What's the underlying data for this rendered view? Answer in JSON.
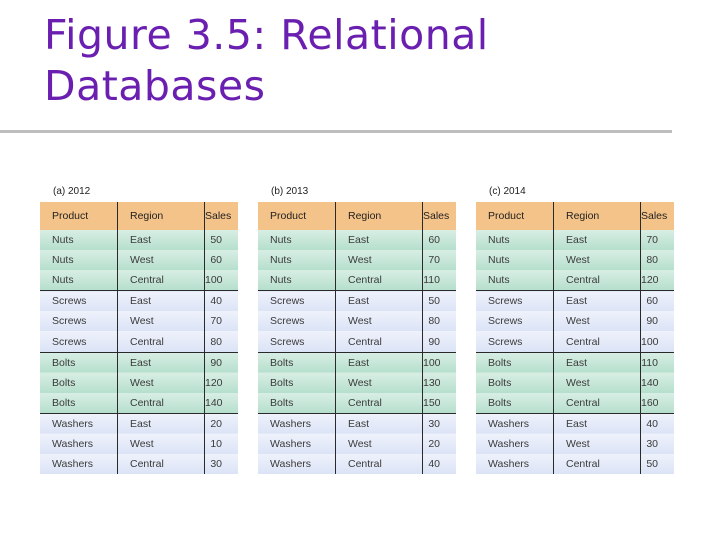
{
  "title": "Figure 3.5: Relational Databases",
  "colors": {
    "title": "#6a1fb0",
    "header": "#f4c389",
    "nuts_bolts_rows": "#c8e6d8",
    "screws_washers_rows": "#e4eaf8"
  },
  "tables": [
    {
      "label": "(a) 2012",
      "columns": [
        "Product",
        "Region",
        "Sales"
      ],
      "rows": [
        [
          "Nuts",
          "East",
          "50"
        ],
        [
          "Nuts",
          "West",
          "60"
        ],
        [
          "Nuts",
          "Central",
          "100"
        ],
        [
          "Screws",
          "East",
          "40"
        ],
        [
          "Screws",
          "West",
          "70"
        ],
        [
          "Screws",
          "Central",
          "80"
        ],
        [
          "Bolts",
          "East",
          "90"
        ],
        [
          "Bolts",
          "West",
          "120"
        ],
        [
          "Bolts",
          "Central",
          "140"
        ],
        [
          "Washers",
          "East",
          "20"
        ],
        [
          "Washers",
          "West",
          "10"
        ],
        [
          "Washers",
          "Central",
          "30"
        ]
      ]
    },
    {
      "label": "(b) 2013",
      "columns": [
        "Product",
        "Region",
        "Sales"
      ],
      "rows": [
        [
          "Nuts",
          "East",
          "60"
        ],
        [
          "Nuts",
          "West",
          "70"
        ],
        [
          "Nuts",
          "Central",
          "110"
        ],
        [
          "Screws",
          "East",
          "50"
        ],
        [
          "Screws",
          "West",
          "80"
        ],
        [
          "Screws",
          "Central",
          "90"
        ],
        [
          "Bolts",
          "East",
          "100"
        ],
        [
          "Bolts",
          "West",
          "130"
        ],
        [
          "Bolts",
          "Central",
          "150"
        ],
        [
          "Washers",
          "East",
          "30"
        ],
        [
          "Washers",
          "West",
          "20"
        ],
        [
          "Washers",
          "Central",
          "40"
        ]
      ]
    },
    {
      "label": "(c) 2014",
      "columns": [
        "Product",
        "Region",
        "Sales"
      ],
      "rows": [
        [
          "Nuts",
          "East",
          "70"
        ],
        [
          "Nuts",
          "West",
          "80"
        ],
        [
          "Nuts",
          "Central",
          "120"
        ],
        [
          "Screws",
          "East",
          "60"
        ],
        [
          "Screws",
          "West",
          "90"
        ],
        [
          "Screws",
          "Central",
          "100"
        ],
        [
          "Bolts",
          "East",
          "110"
        ],
        [
          "Bolts",
          "West",
          "140"
        ],
        [
          "Bolts",
          "Central",
          "160"
        ],
        [
          "Washers",
          "East",
          "40"
        ],
        [
          "Washers",
          "West",
          "30"
        ],
        [
          "Washers",
          "Central",
          "50"
        ]
      ]
    }
  ]
}
